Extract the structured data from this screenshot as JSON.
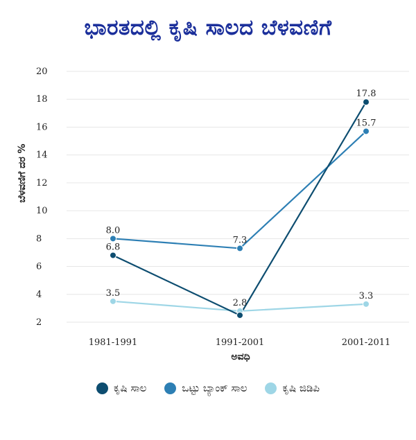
{
  "chart_data": {
    "type": "line",
    "title": "ಭಾರತದಲ್ಲಿ ಕೃಷಿ ಸಾಲದ ಬೆಳವಣಿಗೆ",
    "xlabel": "ಅವಧಿ",
    "ylabel": "ಬೆಳವಣಿಗೆ ದರ %",
    "categories": [
      "1981-1991",
      "1991-2001",
      "2001-2011"
    ],
    "ylim": [
      2,
      20
    ],
    "yticks": [
      2,
      4,
      6,
      8,
      10,
      12,
      14,
      16,
      18,
      20
    ],
    "grid": true,
    "legend_position": "bottom",
    "series": [
      {
        "name": "ಕೃಷಿ ಸಾಲ",
        "color": "#0d4d70",
        "values": [
          6.8,
          2.5,
          17.8
        ],
        "labels": [
          "6.8",
          "",
          "17.8"
        ]
      },
      {
        "name": "ಒಟ್ಟು ಬ್ಯಾಂಕ್ ಸಾಲ",
        "color": "#2d7fb4",
        "values": [
          8.0,
          7.3,
          15.7
        ],
        "labels": [
          "8.0",
          "7.3",
          "15.7"
        ]
      },
      {
        "name": "ಕೃಷಿ ಜಿಡಿಪಿ",
        "color": "#9ed6e6",
        "values": [
          3.5,
          2.8,
          3.3
        ],
        "labels": [
          "3.5",
          "2.8",
          "3.3"
        ]
      }
    ]
  }
}
